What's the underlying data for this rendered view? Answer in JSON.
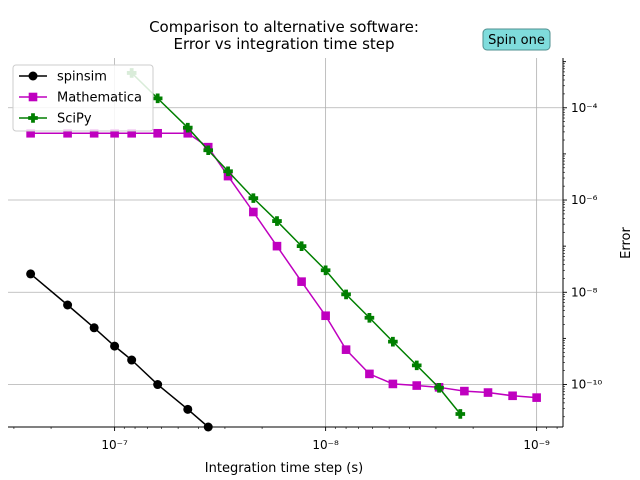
{
  "chart_data": {
    "type": "line",
    "title": [
      "Comparison to alternative software:",
      "Error vs integration time step"
    ],
    "xlabel": "Integration time step (s)",
    "ylabel": "Error",
    "annotation": "Spin one",
    "xscale": "log",
    "yscale": "log",
    "x_inverted": true,
    "xlim": [
      3.2e-07,
      7.5e-10
    ],
    "ylim": [
      1.2e-11,
      0.0012
    ],
    "x_ticks": [
      {
        "value": 1e-07,
        "label": "10⁻⁷"
      },
      {
        "value": 1e-08,
        "label": "10⁻⁸"
      },
      {
        "value": 1e-09,
        "label": "10⁻⁹"
      }
    ],
    "y_ticks": [
      {
        "value": 0.0001,
        "label": "10⁻⁴"
      },
      {
        "value": 1e-06,
        "label": "10⁻⁶"
      },
      {
        "value": 1e-08,
        "label": "10⁻⁸"
      },
      {
        "value": 1e-10,
        "label": "10⁻¹⁰"
      }
    ],
    "grid": true,
    "legend_position": "top-left",
    "series": [
      {
        "name": "spinsim",
        "color": "#000000",
        "marker": "circle",
        "points": [
          [
            2.5e-07,
            2.5e-08
          ],
          [
            1.67e-07,
            5.3e-09
          ],
          [
            1.25e-07,
            1.7e-09
          ],
          [
            1e-07,
            6.8e-10
          ],
          [
            8.3e-08,
            3.4e-10
          ],
          [
            6.25e-08,
            1e-10
          ],
          [
            4.5e-08,
            2.9e-11
          ],
          [
            3.6e-08,
            1.2e-11
          ]
        ]
      },
      {
        "name": "Mathematica",
        "color": "#bf00bf",
        "marker": "square",
        "points": [
          [
            2.5e-07,
            2.8e-05
          ],
          [
            1.67e-07,
            2.8e-05
          ],
          [
            1.25e-07,
            2.8e-05
          ],
          [
            1e-07,
            2.8e-05
          ],
          [
            8.3e-08,
            2.8e-05
          ],
          [
            6.25e-08,
            2.8e-05
          ],
          [
            4.5e-08,
            2.8e-05
          ],
          [
            3.6e-08,
            1.4e-05
          ],
          [
            2.9e-08,
            3.3e-06
          ],
          [
            2.2e-08,
            5.5e-07
          ],
          [
            1.7e-08,
            1e-07
          ],
          [
            1.3e-08,
            1.7e-08
          ],
          [
            1e-08,
            3.1e-09
          ],
          [
            8e-09,
            5.7e-10
          ],
          [
            6.2e-09,
            1.7e-10
          ],
          [
            4.8e-09,
            1.03e-10
          ],
          [
            3.7e-09,
            9.5e-11
          ],
          [
            2.9e-09,
            8.7e-11
          ],
          [
            2.2e-09,
            7.2e-11
          ],
          [
            1.7e-09,
            6.7e-11
          ],
          [
            1.3e-09,
            5.7e-11
          ],
          [
            1e-09,
            5.2e-11
          ]
        ]
      },
      {
        "name": "SciPy",
        "color": "#007f00",
        "marker": "plus",
        "points": [
          [
            8.3e-08,
            0.00057
          ],
          [
            6.25e-08,
            0.00016
          ],
          [
            4.5e-08,
            3.7e-05
          ],
          [
            3.6e-08,
            1.2e-05
          ],
          [
            2.9e-08,
            4.2e-06
          ],
          [
            2.2e-08,
            1.1e-06
          ],
          [
            1.7e-08,
            3.5e-07
          ],
          [
            1.3e-08,
            1e-07
          ],
          [
            1e-08,
            3e-08
          ],
          [
            8e-09,
            9e-09
          ],
          [
            6.2e-09,
            2.8e-09
          ],
          [
            4.8e-09,
            8.5e-10
          ],
          [
            3.7e-09,
            2.6e-10
          ],
          [
            2.9e-09,
            8.5e-11
          ],
          [
            2.3e-09,
            2.3e-11
          ]
        ]
      }
    ]
  }
}
